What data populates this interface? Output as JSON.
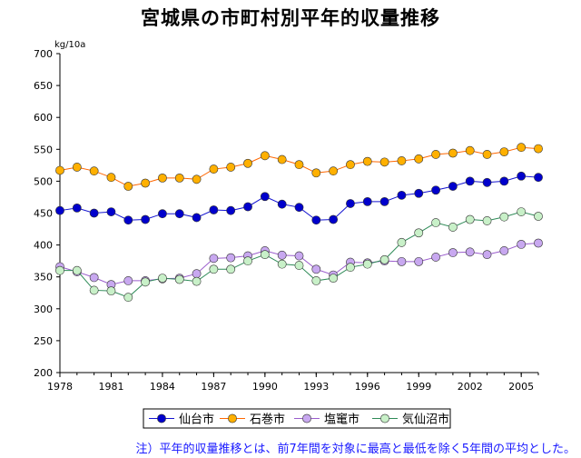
{
  "chart_data": {
    "type": "line",
    "title": "宮城県の市町村別平年的収量推移",
    "ylabel": "kg/10a",
    "xlabel": "",
    "ylim": [
      200,
      700
    ],
    "yticks": [
      200,
      250,
      300,
      350,
      400,
      450,
      500,
      550,
      600,
      650,
      700
    ],
    "xlim": [
      1978,
      2006
    ],
    "xticks": [
      1978,
      1981,
      1984,
      1987,
      1990,
      1993,
      1996,
      1999,
      2002,
      2005
    ],
    "x": [
      1978,
      1979,
      1980,
      1981,
      1982,
      1983,
      1984,
      1985,
      1986,
      1987,
      1988,
      1989,
      1990,
      1991,
      1992,
      1993,
      1994,
      1995,
      1996,
      1997,
      1998,
      1999,
      2000,
      2001,
      2002,
      2003,
      2004,
      2005,
      2006
    ],
    "series": [
      {
        "name": "仙台市",
        "color": "#1414d0",
        "marker": "#0000cc",
        "values": [
          454,
          458,
          450,
          452,
          439,
          440,
          449,
          449,
          443,
          455,
          454,
          460,
          476,
          464,
          459,
          439,
          440,
          465,
          468,
          468,
          478,
          481,
          486,
          492,
          500,
          498,
          500,
          508,
          506
        ]
      },
      {
        "name": "石巻市",
        "color": "#ff6600",
        "marker": "#ffb000",
        "values": [
          517,
          522,
          516,
          506,
          492,
          497,
          505,
          505,
          503,
          519,
          522,
          528,
          540,
          534,
          526,
          513,
          516,
          526,
          531,
          530,
          532,
          535,
          542,
          544,
          548,
          542,
          546,
          553,
          551
        ]
      },
      {
        "name": "塩竃市",
        "color": "#9a5ccc",
        "marker": "#c8a8f0",
        "values": [
          366,
          358,
          349,
          338,
          344,
          344,
          347,
          348,
          355,
          379,
          380,
          383,
          391,
          384,
          383,
          362,
          353,
          373,
          372,
          375,
          374,
          374,
          381,
          388,
          389,
          385,
          391,
          401,
          403
        ]
      },
      {
        "name": "気仙沼市",
        "color": "#2e8b57",
        "marker": "#c8f0c8",
        "values": [
          360,
          360,
          329,
          328,
          318,
          342,
          348,
          346,
          343,
          362,
          362,
          375,
          385,
          370,
          368,
          344,
          348,
          365,
          370,
          377,
          404,
          419,
          435,
          428,
          440,
          438,
          444,
          452,
          445
        ]
      }
    ],
    "legend_position": "bottom",
    "grid": false
  },
  "footnote": "注）平年的収量推移とは、前7年間を対象に最高と最低を除く5年間の平均とした。"
}
